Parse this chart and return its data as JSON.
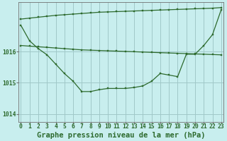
{
  "title": "Graphe pression niveau de la mer (hPa)",
  "hours": [
    0,
    1,
    2,
    3,
    4,
    5,
    6,
    7,
    8,
    9,
    10,
    11,
    12,
    13,
    14,
    15,
    16,
    17,
    18,
    19,
    20,
    21,
    22,
    23
  ],
  "line_diagonal": [
    1017.05,
    1017.08,
    1017.11,
    1017.14,
    1017.17,
    1017.19,
    1017.21,
    1017.23,
    1017.25,
    1017.27,
    1017.28,
    1017.29,
    1017.3,
    1017.31,
    1017.32,
    1017.33,
    1017.34,
    1017.35,
    1017.36,
    1017.37,
    1017.38,
    1017.39,
    1017.4,
    1017.42
  ],
  "line_flat": [
    1016.2,
    1016.18,
    1016.16,
    1016.14,
    1016.12,
    1016.1,
    1016.08,
    1016.06,
    1016.05,
    1016.04,
    1016.03,
    1016.02,
    1016.01,
    1016.0,
    1015.99,
    1015.98,
    1015.97,
    1015.96,
    1015.95,
    1015.94,
    1015.93,
    1015.92,
    1015.91,
    1015.9
  ],
  "line_curve": [
    1016.85,
    1016.35,
    1016.1,
    1015.9,
    1015.6,
    1015.3,
    1015.05,
    1014.72,
    1014.72,
    1014.78,
    1014.82,
    1014.82,
    1014.82,
    1014.85,
    1014.9,
    1015.05,
    1015.3,
    1015.25,
    1015.2,
    1015.92,
    1015.92,
    1016.2,
    1016.55,
    1017.35
  ],
  "line_color": "#2d6a2d",
  "bg_color": "#c8eeee",
  "grid_color": "#a0c8c8",
  "ylim": [
    1013.75,
    1017.6
  ],
  "yticks": [
    1014,
    1015,
    1016
  ],
  "title_fontsize": 7.5,
  "tick_fontsize": 5.8
}
